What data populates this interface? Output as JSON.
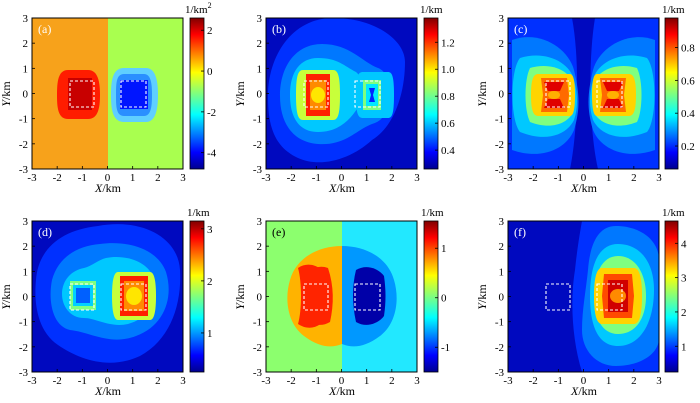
{
  "chart_data": {
    "type": "heatmap",
    "x_tick_labels": [
      "-3",
      "-2",
      "-1",
      "0",
      "1",
      "2",
      "3"
    ],
    "y_tick_labels": [
      "-3",
      "-2",
      "-1",
      "0",
      "1",
      "2",
      "3"
    ],
    "xlim": [
      -3,
      3
    ],
    "ylim": [
      -3,
      3
    ],
    "xlabel_var": "X",
    "ylabel_var": "Y",
    "axis_unit": "/km",
    "bodies": [
      {
        "name": "left-body",
        "x_range": [
          -1.5,
          -0.5
        ],
        "y_range": [
          -0.5,
          0.5
        ]
      },
      {
        "name": "right-body",
        "x_range": [
          0.5,
          1.5
        ],
        "y_range": [
          -0.5,
          0.5
        ]
      }
    ],
    "panels": [
      {
        "id": "a",
        "label": "(a)",
        "unit": "1/km",
        "unit_sup": "2",
        "colorbar_ticks": [
          "2",
          "0",
          "-2",
          "-4"
        ],
        "colorbar_values": [
          2,
          0,
          -2,
          -4
        ],
        "vmin": -4.8,
        "vmax": 2.6
      },
      {
        "id": "b",
        "label": "(b)",
        "unit": "1/km",
        "unit_sup": "",
        "colorbar_ticks": [
          "1.2",
          "1.0",
          "0.8",
          "0.6",
          "0.4"
        ],
        "colorbar_values": [
          1.2,
          1.0,
          0.8,
          0.6,
          0.4
        ],
        "vmin": 0.26,
        "vmax": 1.38
      },
      {
        "id": "c",
        "label": "(c)",
        "unit": "1/km",
        "unit_sup": "",
        "colorbar_ticks": [
          "0.8",
          "0.6",
          "0.4",
          "0.2"
        ],
        "colorbar_values": [
          0.8,
          0.6,
          0.4,
          0.2
        ],
        "vmin": 0.06,
        "vmax": 0.98
      },
      {
        "id": "d",
        "label": "(d)",
        "unit": "1/km",
        "unit_sup": "",
        "colorbar_ticks": [
          "3",
          "2",
          "1"
        ],
        "colorbar_values": [
          3,
          2,
          1
        ],
        "vmin": 0.25,
        "vmax": 3.15
      },
      {
        "id": "e",
        "label": "(e)",
        "unit": "1/km",
        "unit_sup": "",
        "colorbar_ticks": [
          "1",
          "0",
          "-1"
        ],
        "colorbar_values": [
          1,
          0,
          -1
        ],
        "vmin": -1.5,
        "vmax": 1.55
      },
      {
        "id": "f",
        "label": "(f)",
        "unit": "1/km",
        "unit_sup": "",
        "colorbar_ticks": [
          "4",
          "3",
          "2",
          "1"
        ],
        "colorbar_values": [
          4,
          3,
          2,
          1
        ],
        "vmin": 0.25,
        "vmax": 4.65
      }
    ]
  }
}
